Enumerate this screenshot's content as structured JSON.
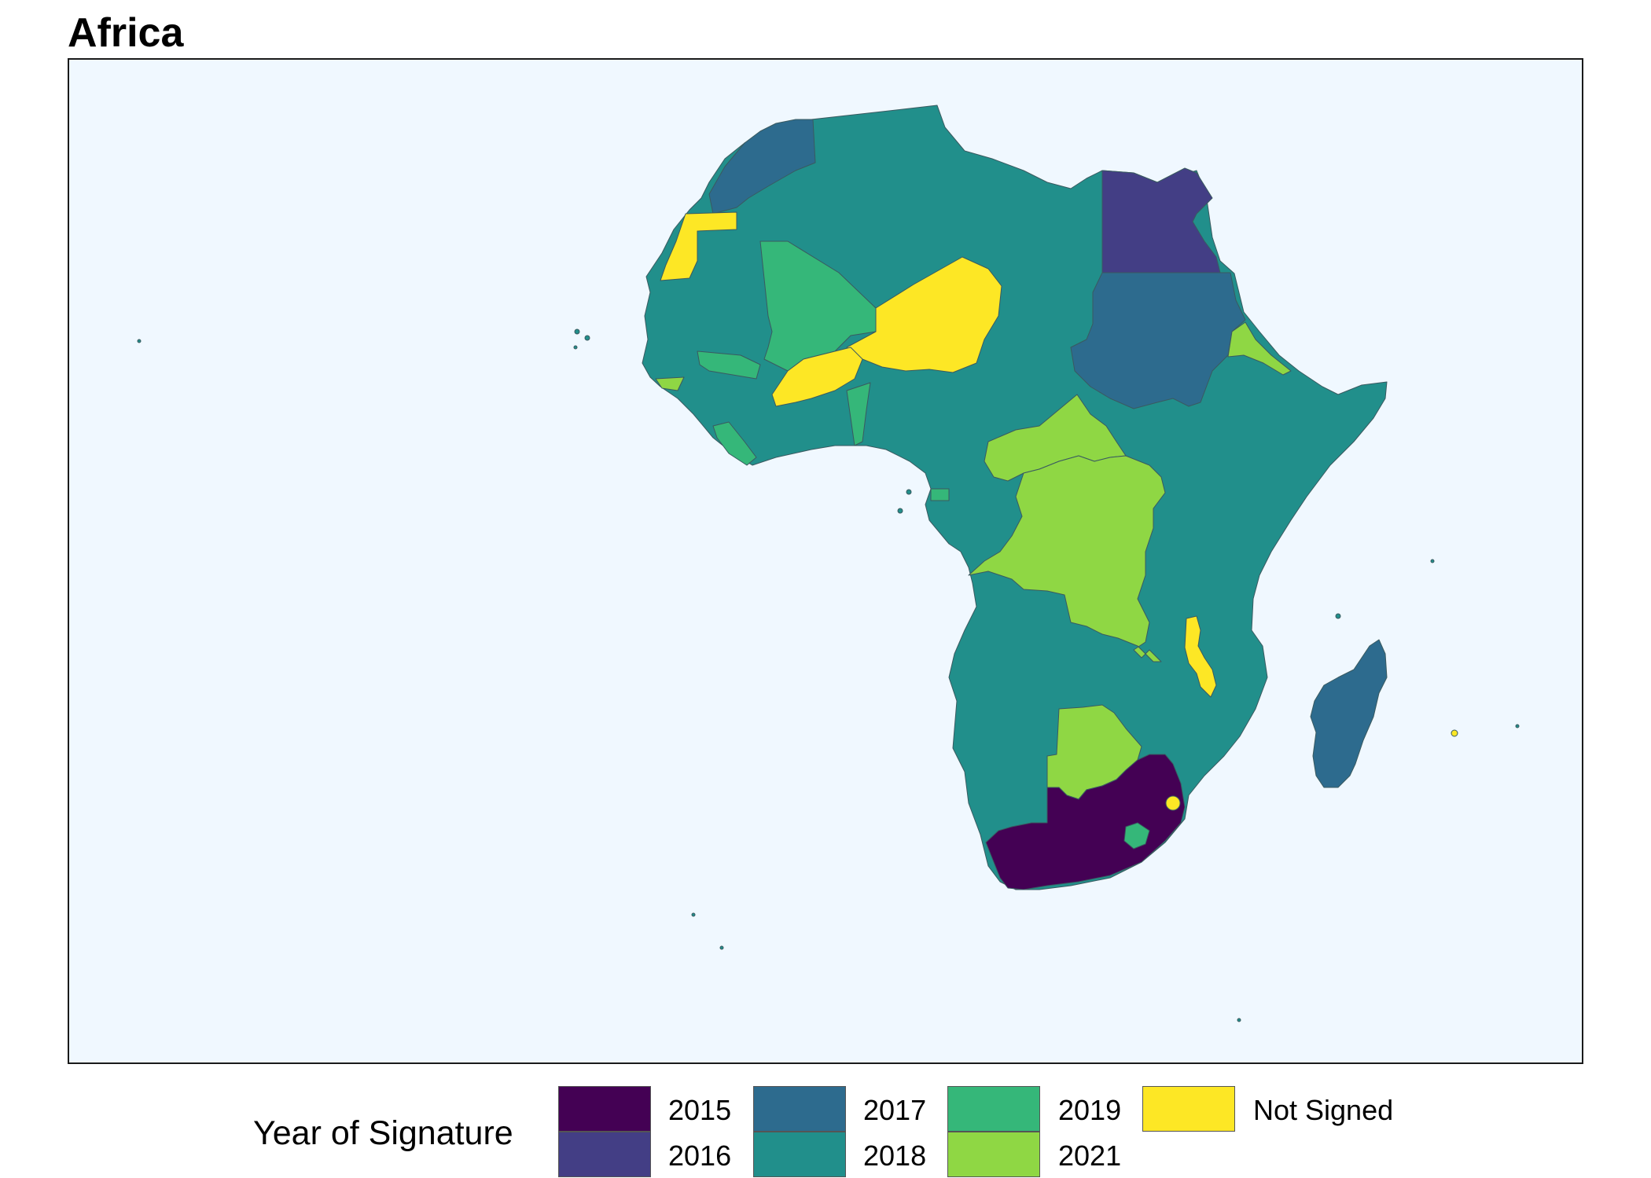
{
  "title": "Africa",
  "colors": {
    "panel_background": "#f0f8ff",
    "2015": "#440154",
    "2016": "#433e85",
    "2017": "#2d6b8e",
    "2018": "#218f8b",
    "2019": "#35b779",
    "2021": "#8fd744",
    "not_signed": "#fde725"
  },
  "legend": {
    "title": "Year of Signature",
    "items": [
      {
        "label": "2015",
        "color": "#440154"
      },
      {
        "label": "2016",
        "color": "#433e85"
      },
      {
        "label": "2017",
        "color": "#2d6b8e"
      },
      {
        "label": "2018",
        "color": "#218f8b"
      },
      {
        "label": "2019",
        "color": "#35b779"
      },
      {
        "label": "2021",
        "color": "#8fd744"
      },
      {
        "label": "Not Signed",
        "color": "#fde725"
      }
    ]
  }
}
